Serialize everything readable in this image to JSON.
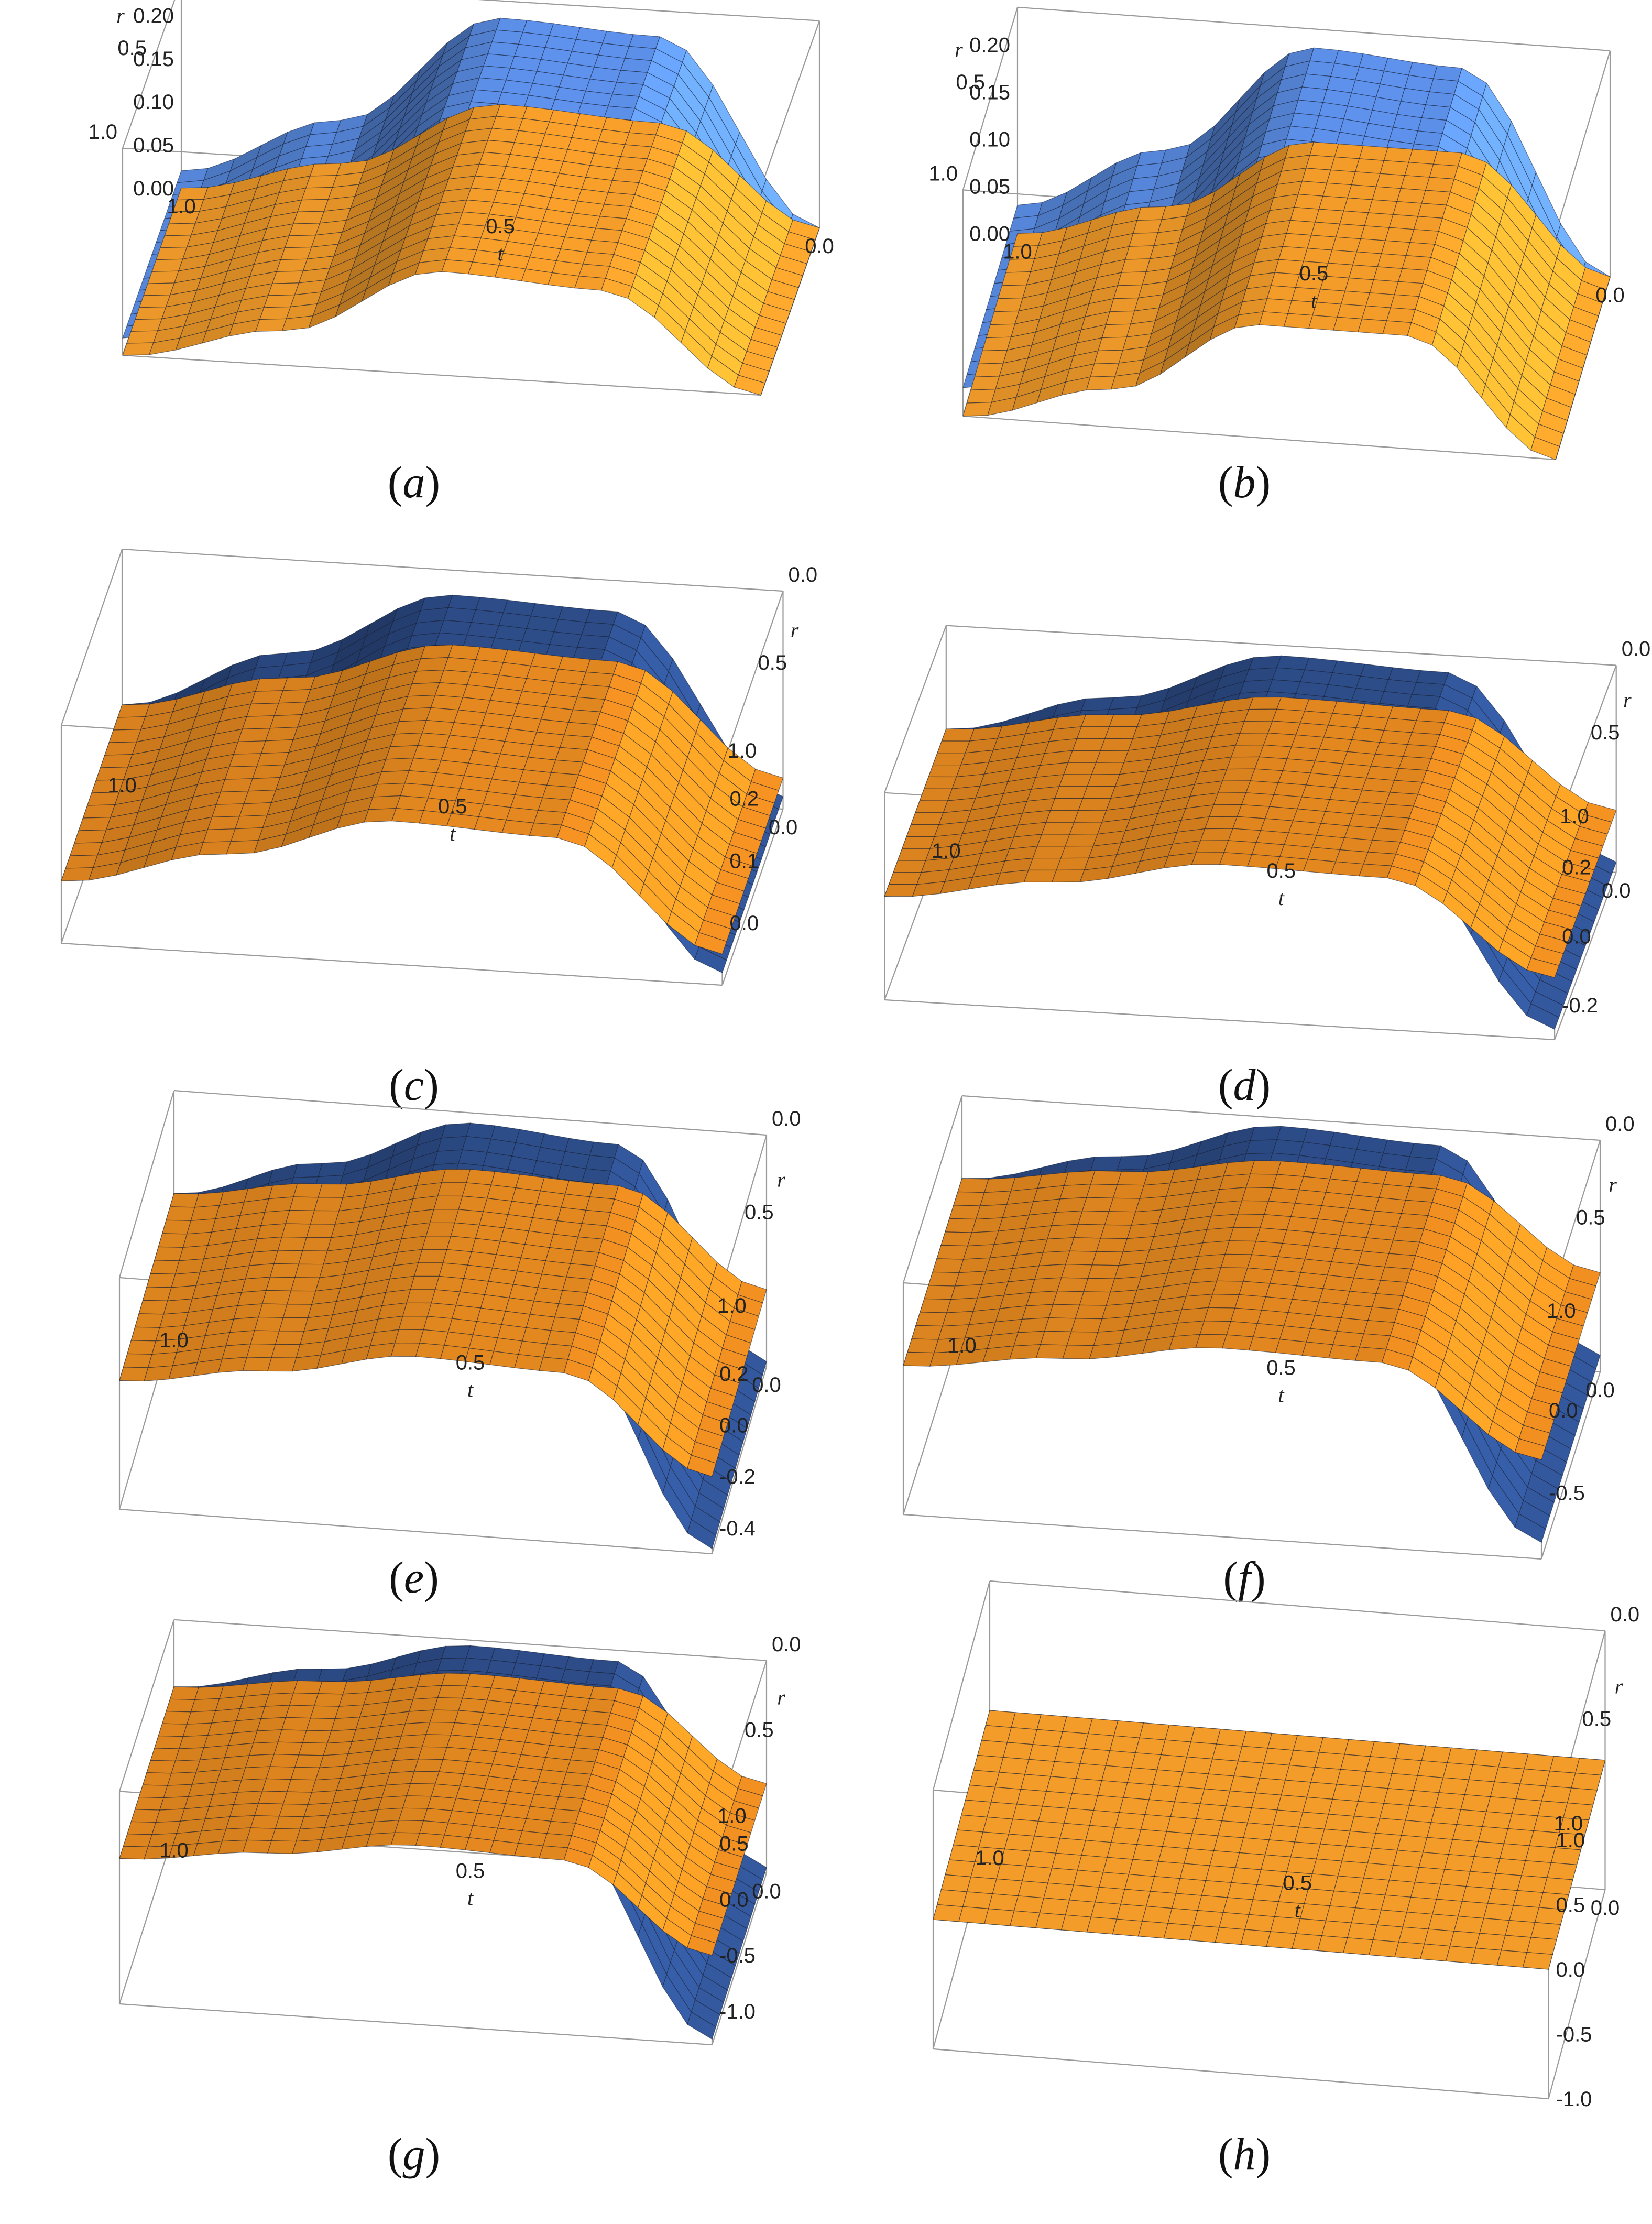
{
  "chart_data": [
    {
      "type": "surface3d",
      "label": "a",
      "xlabel": "t",
      "ylabel": "r",
      "x_ticks": [
        "0.0",
        "0.5",
        "1.0"
      ],
      "y_ticks": [
        "0.0",
        "0.5",
        "1.0"
      ],
      "z_ticks": [
        "0.00",
        "0.05",
        "0.10",
        "0.15",
        "0.20"
      ],
      "zlim": [
        0,
        0.24
      ],
      "series": [
        {
          "color": "#5b8ee6",
          "profile_t": [
            0,
            0.25,
            0.5,
            0.75,
            1.0
          ],
          "profile_z": [
            0.0,
            0.21,
            0.22,
            0.09,
            0.02
          ]
        },
        {
          "color": "#f39c2a",
          "profile_t": [
            0,
            0.25,
            0.5,
            0.75,
            1.0
          ],
          "profile_z": [
            0.0,
            0.11,
            0.12,
            0.04,
            0.0
          ]
        }
      ]
    },
    {
      "type": "surface3d",
      "label": "b",
      "xlabel": "t",
      "ylabel": "r",
      "x_ticks": [
        "0.0",
        "0.5",
        "1.0"
      ],
      "y_ticks": [
        "0.0",
        "0.5",
        "1.0"
      ],
      "z_ticks": [
        "0.00",
        "0.05",
        "0.10",
        "0.15",
        "0.20"
      ],
      "zlim": [
        0,
        0.24
      ],
      "series": [
        {
          "color": "#5b8ee6",
          "profile_t": [
            0,
            0.25,
            0.5,
            0.75,
            1.0
          ],
          "profile_z": [
            0.0,
            0.21,
            0.22,
            0.1,
            0.03
          ]
        },
        {
          "color": "#f39c2a",
          "profile_t": [
            0,
            0.25,
            0.5,
            0.75,
            1.0
          ],
          "profile_z": [
            0.0,
            0.12,
            0.12,
            0.04,
            0.0
          ]
        }
      ]
    },
    {
      "type": "surface3d",
      "label": "c",
      "xlabel": "t",
      "ylabel": "r",
      "x_ticks": [
        "0.0",
        "0.5",
        "1.0"
      ],
      "y_ticks": [
        "0.0",
        "0.5",
        "1.0"
      ],
      "z_ticks": [
        "0.0",
        "0.1",
        "0.2"
      ],
      "zlim": [
        -0.1,
        0.25
      ],
      "series": [
        {
          "color": "#2c4b86",
          "profile_t": [
            0,
            0.25,
            0.5,
            0.75,
            1.0
          ],
          "profile_z": [
            -0.08,
            0.2,
            0.21,
            0.1,
            0.0
          ]
        },
        {
          "color": "#e0861f",
          "profile_t": [
            0,
            0.25,
            0.5,
            0.75,
            1.0
          ],
          "profile_z": [
            -0.05,
            0.12,
            0.13,
            0.06,
            0.0
          ]
        }
      ]
    },
    {
      "type": "surface3d",
      "label": "d",
      "xlabel": "t",
      "ylabel": "r",
      "x_ticks": [
        "0.0",
        "0.5",
        "1.0"
      ],
      "y_ticks": [
        "0.0",
        "0.5",
        "1.0"
      ],
      "z_ticks": [
        "-0.2",
        "0.0",
        "0.2"
      ],
      "zlim": [
        -0.3,
        0.3
      ],
      "series": [
        {
          "color": "#2c4b86",
          "profile_t": [
            0,
            0.25,
            0.5,
            0.75,
            1.0
          ],
          "profile_z": [
            -0.27,
            0.25,
            0.27,
            0.12,
            0.0
          ]
        },
        {
          "color": "#e0861f",
          "profile_t": [
            0,
            0.25,
            0.5,
            0.75,
            1.0
          ],
          "profile_z": [
            -0.12,
            0.14,
            0.15,
            0.07,
            0.0
          ]
        }
      ]
    },
    {
      "type": "surface3d",
      "label": "e",
      "xlabel": "t",
      "ylabel": "r",
      "x_ticks": [
        "0.0",
        "0.5",
        "1.0"
      ],
      "y_ticks": [
        "0.0",
        "0.5",
        "1.0"
      ],
      "z_ticks": [
        "-0.4",
        "-0.2",
        "0.0",
        "0.2"
      ],
      "zlim": [
        -0.5,
        0.4
      ],
      "series": [
        {
          "color": "#2c4b86",
          "profile_t": [
            0,
            0.25,
            0.5,
            0.75,
            1.0
          ],
          "profile_z": [
            -0.48,
            0.32,
            0.36,
            0.16,
            0.0
          ]
        },
        {
          "color": "#e0861f",
          "profile_t": [
            0,
            0.25,
            0.5,
            0.75,
            1.0
          ],
          "profile_z": [
            -0.2,
            0.16,
            0.18,
            0.08,
            0.0
          ]
        }
      ]
    },
    {
      "type": "surface3d",
      "label": "f",
      "xlabel": "t",
      "ylabel": "r",
      "x_ticks": [
        "0.0",
        "0.5",
        "1.0"
      ],
      "y_ticks": [
        "0.0",
        "0.5",
        "1.0"
      ],
      "z_ticks": [
        "-0.5",
        "0.0"
      ],
      "zlim": [
        -0.9,
        0.5
      ],
      "series": [
        {
          "color": "#2c4b86",
          "profile_t": [
            0,
            0.25,
            0.5,
            0.75,
            1.0
          ],
          "profile_z": [
            -0.8,
            0.4,
            0.45,
            0.2,
            0.0
          ]
        },
        {
          "color": "#e0861f",
          "profile_t": [
            0,
            0.25,
            0.5,
            0.75,
            1.0
          ],
          "profile_z": [
            -0.3,
            0.22,
            0.24,
            0.11,
            0.0
          ]
        }
      ]
    },
    {
      "type": "surface3d",
      "label": "g",
      "xlabel": "t",
      "ylabel": "r",
      "x_ticks": [
        "0.0",
        "0.5",
        "1.0"
      ],
      "y_ticks": [
        "0.0",
        "0.5",
        "1.0"
      ],
      "z_ticks": [
        "-1.0",
        "-0.5",
        "0.0",
        "0.5"
      ],
      "zlim": [
        -1.3,
        0.6
      ],
      "series": [
        {
          "color": "#2c4b86",
          "profile_t": [
            0,
            0.25,
            0.5,
            0.75,
            1.0
          ],
          "profile_z": [
            -1.25,
            0.5,
            0.55,
            0.25,
            0.0
          ]
        },
        {
          "color": "#e0861f",
          "profile_t": [
            0,
            0.25,
            0.5,
            0.75,
            1.0
          ],
          "profile_z": [
            -0.5,
            0.26,
            0.3,
            0.14,
            0.0
          ]
        }
      ]
    },
    {
      "type": "surface3d",
      "label": "h",
      "xlabel": "t",
      "ylabel": "r",
      "x_ticks": [
        "0.0",
        "0.5",
        "1.0"
      ],
      "y_ticks": [
        "0.0",
        "0.5",
        "1.0"
      ],
      "z_ticks": [
        "-1.0",
        "-0.5",
        "0.0",
        "0.5",
        "1.0"
      ],
      "zlim": [
        -1.0,
        1.0
      ],
      "series": [
        {
          "color": "#5b8ee6",
          "profile_t": [
            0,
            0.5,
            1.0
          ],
          "profile_z": [
            0.0,
            0.0,
            0.0
          ]
        },
        {
          "color": "#f39c2a",
          "profile_t": [
            0,
            0.5,
            1.0
          ],
          "profile_z": [
            0.0,
            0.0,
            0.0
          ]
        }
      ]
    }
  ]
}
